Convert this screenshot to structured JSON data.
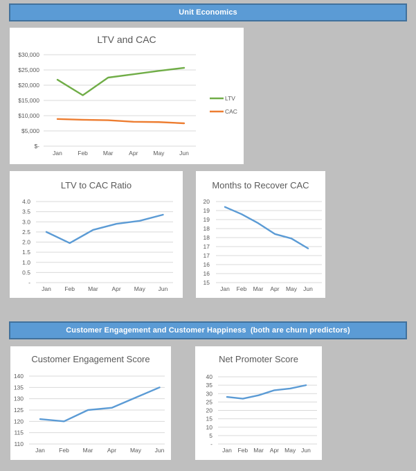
{
  "theme": {
    "page_background": "#BFBFBF",
    "card_background": "#FFFFFF",
    "header_fill": "#5B9BD5",
    "header_border": "#41719C",
    "header_text": "#FFFFFF",
    "grid_color": "#D9D9D9",
    "axis_text_color": "#595959",
    "title_text_color": "#595959",
    "ltv_line_color": "#70AD47",
    "cac_line_color": "#ED7D31",
    "blue_line_color": "#5B9BD5"
  },
  "sections": [
    {
      "label": "Unit Economics"
    },
    {
      "label": "Customer Engagement and Customer Happiness  (both are churn predictors)"
    }
  ],
  "chart_data": [
    {
      "type": "line",
      "title": "LTV and CAC",
      "categories": [
        "Jan",
        "Feb",
        "Mar",
        "Apr",
        "May",
        "Jun"
      ],
      "series": [
        {
          "name": "LTV",
          "color": "#70AD47",
          "values": [
            21800,
            16700,
            22500,
            23600,
            24700,
            25700
          ]
        },
        {
          "name": "CAC",
          "color": "#ED7D31",
          "values": [
            8900,
            8650,
            8500,
            8000,
            7900,
            7500
          ]
        }
      ],
      "ylim": [
        0,
        30000
      ],
      "ytick_labels": [
        "$-",
        "$5,000",
        "$10,000",
        "$15,000",
        "$20,000",
        "$25,000",
        "$30,000"
      ],
      "grid": true,
      "legend": true,
      "legend_position": "right"
    },
    {
      "type": "line",
      "title": "LTV to CAC Ratio",
      "categories": [
        "Jan",
        "Feb",
        "Mar",
        "Apr",
        "May",
        "Jun"
      ],
      "series": [
        {
          "name": "LTV to CAC Ratio",
          "color": "#5B9BD5",
          "values": [
            2.5,
            1.95,
            2.6,
            2.9,
            3.05,
            3.35
          ]
        }
      ],
      "ylim": [
        0,
        4
      ],
      "ytick_labels": [
        "-",
        "0.5",
        "1.0",
        "1.5",
        "2.0",
        "2.5",
        "3.0",
        "3.5",
        "4.0"
      ],
      "grid": true,
      "legend": false
    },
    {
      "type": "line",
      "title": "Months to Recover CAC",
      "categories": [
        "Jan",
        "Feb",
        "Mar",
        "Apr",
        "May",
        "Jun"
      ],
      "series": [
        {
          "name": "Months to Recover CAC",
          "color": "#5B9BD5",
          "values": [
            19.2,
            18.8,
            18.3,
            17.7,
            17.45,
            16.9
          ]
        }
      ],
      "ylim": [
        15,
        19.5
      ],
      "ytick_labels": [
        "15",
        "16",
        "16",
        "17",
        "17",
        "18",
        "18",
        "19",
        "19",
        "20"
      ],
      "grid": true,
      "legend": false
    },
    {
      "type": "line",
      "title": "Customer Engagement Score",
      "categories": [
        "Jan",
        "Feb",
        "Mar",
        "Apr",
        "May",
        "Jun"
      ],
      "series": [
        {
          "name": "Customer Engagement Score",
          "color": "#5B9BD5",
          "values": [
            121,
            120,
            125,
            126,
            130.5,
            135
          ]
        }
      ],
      "ylim": [
        110,
        140
      ],
      "ytick_labels": [
        "110",
        "115",
        "120",
        "125",
        "130",
        "135",
        "140"
      ],
      "grid": true,
      "legend": false
    },
    {
      "type": "line",
      "title": "Net Promoter Score",
      "categories": [
        "Jan",
        "Feb",
        "Mar",
        "Apr",
        "May",
        "Jun"
      ],
      "series": [
        {
          "name": "Net Promoter Score",
          "color": "#5B9BD5",
          "values": [
            28,
            27,
            29,
            32,
            33,
            35
          ]
        }
      ],
      "ylim": [
        0,
        40
      ],
      "ytick_labels": [
        "-",
        "5",
        "10",
        "15",
        "20",
        "25",
        "30",
        "35",
        "40"
      ],
      "grid": true,
      "legend": false
    }
  ]
}
